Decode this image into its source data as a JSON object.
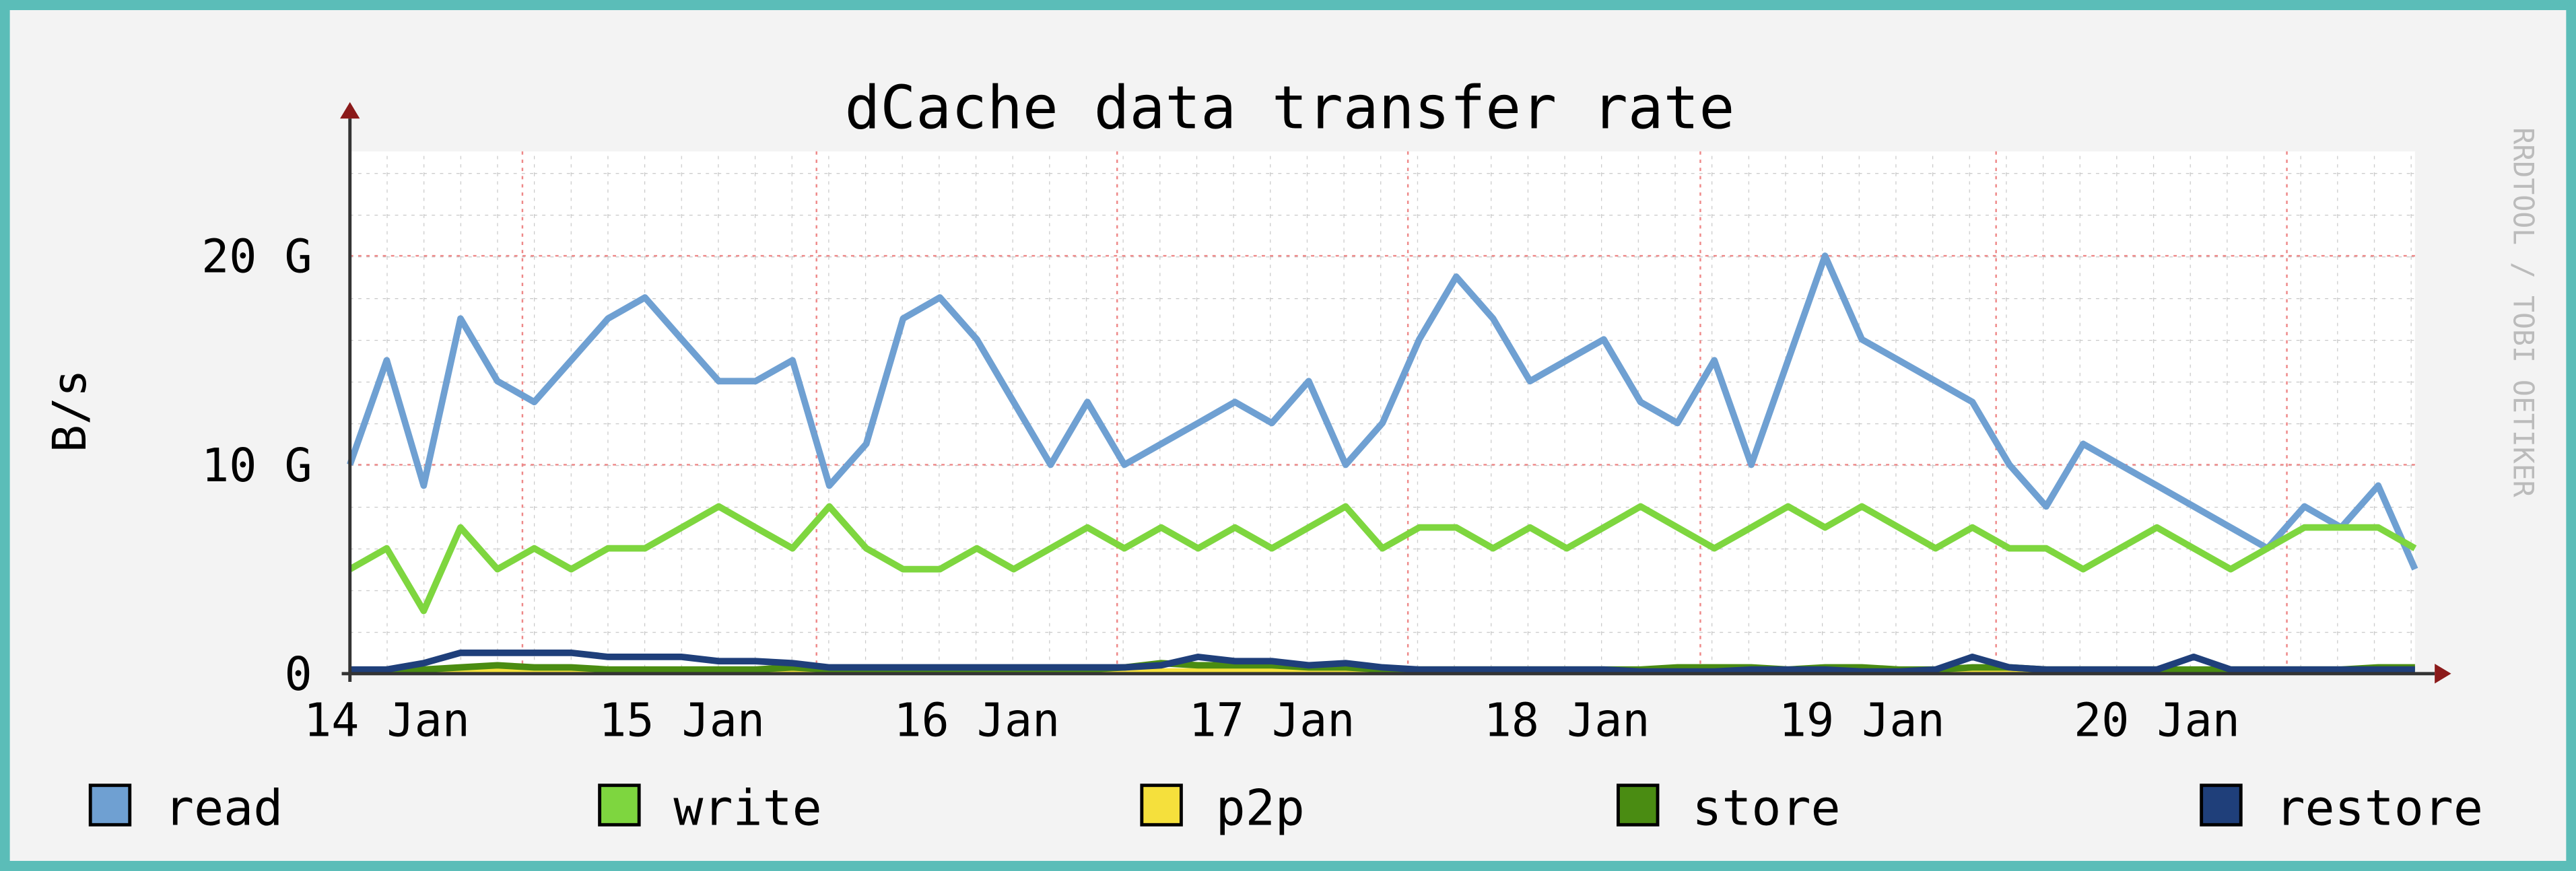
{
  "chart_data": {
    "type": "line",
    "title": "dCache data transfer rate",
    "y_label": "B/s",
    "watermark": "RRDTOOL / TOBI OETIKER",
    "categories": [
      null,
      "14 Jan",
      null,
      null,
      null,
      null,
      null,
      null,
      null,
      "15 Jan",
      null,
      null,
      null,
      null,
      null,
      null,
      null,
      "16 Jan",
      null,
      null,
      null,
      null,
      null,
      null,
      null,
      "17 Jan",
      null,
      null,
      null,
      null,
      null,
      null,
      null,
      "18 Jan",
      null,
      null,
      null,
      null,
      null,
      null,
      null,
      "19 Jan",
      null,
      null,
      null,
      null,
      null,
      null,
      null,
      "20 Jan",
      null,
      null,
      null,
      null,
      null,
      null,
      null
    ],
    "ylim": [
      0,
      25
    ],
    "yticks": [
      {
        "value": 0,
        "label": "0"
      },
      {
        "value": 10,
        "label": "10 G"
      },
      {
        "value": 20,
        "label": "20 G"
      }
    ],
    "grid": true,
    "series": [
      {
        "name": "read",
        "color": "#6fa0d2",
        "values": [
          10,
          15,
          9,
          17,
          14,
          13,
          15,
          17,
          18,
          16,
          14,
          14,
          15,
          9,
          11,
          17,
          18,
          16,
          13,
          10,
          13,
          10,
          11,
          12,
          13,
          12,
          14,
          10,
          12,
          16,
          19,
          17,
          14,
          15,
          16,
          13,
          12,
          15,
          10,
          15,
          20,
          16,
          15,
          14,
          13,
          10,
          8,
          11,
          10,
          9,
          8,
          7,
          6,
          8,
          7,
          9,
          5
        ]
      },
      {
        "name": "write",
        "color": "#7ed63f",
        "values": [
          5,
          6,
          3,
          7,
          5,
          6,
          5,
          6,
          6,
          7,
          8,
          7,
          6,
          8,
          6,
          5,
          5,
          6,
          5,
          6,
          7,
          6,
          7,
          6,
          7,
          6,
          7,
          8,
          6,
          7,
          7,
          6,
          7,
          6,
          7,
          8,
          7,
          6,
          7,
          8,
          7,
          8,
          7,
          6,
          7,
          6,
          6,
          5,
          6,
          7,
          6,
          5,
          6,
          7,
          7,
          7,
          6
        ]
      },
      {
        "name": "p2p",
        "color": "#f5e03c",
        "values": [
          0.1,
          0.1,
          0.1,
          0.1,
          0.1,
          0.1,
          0.1,
          0.2,
          0.1,
          0.1,
          0.1,
          0.1,
          0.2,
          0.1,
          0.1,
          0.1,
          0.1,
          0.2,
          0.1,
          0.1,
          0.1,
          0.1,
          0.1,
          0.1,
          0.1,
          0.1,
          0.1,
          0.1,
          0.1,
          0.1,
          0.1,
          0.1,
          0.1,
          0.1,
          0.1,
          0.1,
          0.1,
          0.1,
          0.1,
          0.1,
          0.1,
          0.1,
          0.1,
          0.1,
          0.1,
          0.1,
          0.1,
          0.1,
          0.1,
          0.1,
          0.1,
          0.1,
          0.1,
          0.1,
          0.1,
          0.1,
          0.1
        ]
      },
      {
        "name": "store",
        "color": "#4a8c12",
        "values": [
          0.1,
          0.2,
          0.2,
          0.3,
          0.4,
          0.3,
          0.3,
          0.2,
          0.2,
          0.2,
          0.2,
          0.2,
          0.3,
          0.2,
          0.2,
          0.2,
          0.2,
          0.2,
          0.2,
          0.2,
          0.2,
          0.3,
          0.5,
          0.4,
          0.4,
          0.4,
          0.3,
          0.3,
          0.2,
          0.2,
          0.2,
          0.2,
          0.2,
          0.2,
          0.2,
          0.2,
          0.3,
          0.3,
          0.3,
          0.2,
          0.3,
          0.3,
          0.2,
          0.2,
          0.3,
          0.3,
          0.2,
          0.2,
          0.2,
          0.2,
          0.2,
          0.2,
          0.2,
          0.2,
          0.2,
          0.3,
          0.3
        ]
      },
      {
        "name": "restore",
        "color": "#1f3f7a",
        "values": [
          0.2,
          0.2,
          0.5,
          1,
          1,
          1,
          1,
          0.8,
          0.8,
          0.8,
          0.6,
          0.6,
          0.5,
          0.3,
          0.3,
          0.3,
          0.3,
          0.3,
          0.3,
          0.3,
          0.3,
          0.3,
          0.4,
          0.8,
          0.6,
          0.6,
          0.4,
          0.5,
          0.3,
          0.2,
          0.2,
          0.2,
          0.2,
          0.2,
          0.2,
          0.1,
          0.1,
          0.1,
          0.2,
          0.2,
          0.2,
          0.1,
          0.1,
          0.2,
          0.8,
          0.3,
          0.2,
          0.2,
          0.2,
          0.2,
          0.8,
          0.2,
          0.2,
          0.2,
          0.2,
          0.2,
          0.2
        ]
      }
    ]
  }
}
